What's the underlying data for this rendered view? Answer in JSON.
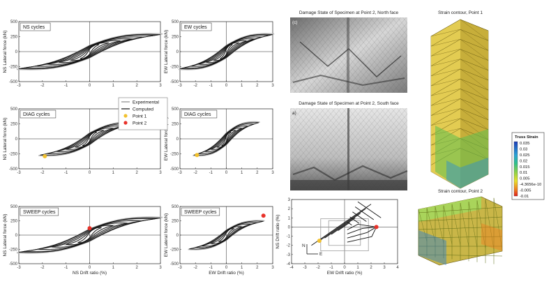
{
  "chart_data": [
    {
      "type": "line",
      "title": "NS cycles",
      "xlabel": "",
      "ylabel": "NS Lateral force (kN)",
      "xlim": [
        -3,
        3
      ],
      "ylim": [
        -500,
        500
      ],
      "xticks": [
        "-3",
        "-2",
        "-1",
        "0",
        "1",
        "2",
        "3"
      ],
      "yticks": [
        "500",
        "250",
        "0",
        "-250",
        "-500"
      ],
      "series": [],
      "amps": [
        0.4,
        0.8,
        1.3,
        1.8,
        2.3,
        2.8,
        3.0
      ],
      "fmax": 400
    },
    {
      "type": "line",
      "title": "EW cycles",
      "xlabel": "",
      "ylabel": "EW Lateral force (kN)",
      "xlim": [
        -3,
        3
      ],
      "ylim": [
        -500,
        500
      ],
      "xticks": [
        "-3",
        "-2",
        "-1",
        "0",
        "1",
        "2",
        "3"
      ],
      "yticks": [
        "500",
        "250",
        "0",
        "-250",
        "-500"
      ],
      "series": [],
      "amps": [
        0.4,
        0.8,
        1.3,
        1.8,
        2.3,
        2.8,
        3.0
      ],
      "fmax": 400
    },
    {
      "type": "line",
      "title": "DIAG cycles",
      "xlabel": "",
      "ylabel": "NS Lateral force (kN)",
      "xlim": [
        -3,
        3
      ],
      "ylim": [
        -500,
        500
      ],
      "xticks": [
        "-3",
        "-2",
        "-1",
        "0",
        "1",
        "2",
        "3"
      ],
      "yticks": [
        "500",
        "250",
        "0",
        "-250",
        "-500"
      ],
      "series": [],
      "amps": [
        0.3,
        0.6,
        1.0,
        1.4,
        1.8,
        2.1
      ],
      "fmax": 380,
      "points": [
        {
          "name": "Point 1",
          "x": -1.9,
          "y": -290,
          "color": "#f2c12e"
        }
      ]
    },
    {
      "type": "line",
      "title": "DIAG cycles",
      "xlabel": "",
      "ylabel": "EW Lateral force (kN)",
      "xlim": [
        -3,
        3
      ],
      "ylim": [
        -500,
        500
      ],
      "xticks": [
        "-3",
        "-2",
        "-1",
        "0",
        "1",
        "2",
        "3"
      ],
      "yticks": [
        "500",
        "250",
        "0",
        "-250",
        "-500"
      ],
      "series": [],
      "amps": [
        0.3,
        0.6,
        1.0,
        1.4,
        1.8,
        2.1
      ],
      "fmax": 380,
      "points": [
        {
          "name": "Point 1",
          "x": -1.9,
          "y": -270,
          "color": "#f2c12e"
        }
      ]
    },
    {
      "type": "line",
      "title": "SWEEP cycles",
      "xlabel": "NS Drift ratio (%)",
      "ylabel": "NS Lateral force (kN)",
      "xlim": [
        -3,
        3
      ],
      "ylim": [
        -500,
        500
      ],
      "xticks": [
        "-3",
        "-2",
        "-1",
        "0",
        "1",
        "2",
        "3"
      ],
      "yticks": [
        "500",
        "250",
        "0",
        "-250",
        "-500"
      ],
      "series": [],
      "amps": [
        0.5,
        1.0,
        1.6,
        2.2,
        2.8,
        3.0
      ],
      "fmax": 420,
      "points": [
        {
          "name": "Point 2",
          "x": 0.0,
          "y": 120,
          "color": "#e8322a"
        }
      ]
    },
    {
      "type": "line",
      "title": "SWEEP cycles",
      "xlabel": "EW Drift ratio (%)",
      "ylabel": "EW Lateral force (kN)",
      "xlim": [
        -3,
        3
      ],
      "ylim": [
        -500,
        500
      ],
      "xticks": [
        "-3",
        "-2",
        "-1",
        "0",
        "1",
        "2",
        "3"
      ],
      "yticks": [
        "500",
        "250",
        "0",
        "-250",
        "-500"
      ],
      "series": [],
      "amps": [
        0.5,
        1.0,
        1.6,
        2.0,
        2.4
      ],
      "fmax": 340,
      "points": [
        {
          "name": "Point 2",
          "x": 2.4,
          "y": 340,
          "color": "#e8322a"
        }
      ]
    },
    {
      "type": "line",
      "title": "",
      "xlabel": "EW Drift ratio (%)",
      "ylabel": "NS Drift ratio (%)",
      "xlim": [
        -4,
        4
      ],
      "ylim": [
        -4,
        3
      ],
      "xticks": [
        "-4",
        "-3",
        "-2",
        "-1",
        "0",
        "1",
        "2",
        "3",
        "4"
      ],
      "yticks": [
        "3",
        "2",
        "1",
        "0",
        "-1",
        "-2",
        "-3",
        "-4"
      ],
      "points": [
        {
          "name": "Point 1",
          "x": -1.9,
          "y": -1.5,
          "color": "#f2c12e"
        },
        {
          "name": "Point 2",
          "x": 2.4,
          "y": 0,
          "color": "#e8322a"
        }
      ],
      "compass": {
        "north": "N",
        "east": "E"
      }
    }
  ],
  "legend": {
    "items": [
      {
        "label": "Experimental",
        "color": "#b8b8b8"
      },
      {
        "label": "Computed",
        "color": "#111111"
      },
      {
        "label": "Point 1",
        "color": "#f2c12e"
      },
      {
        "label": "Point 2",
        "color": "#e8322a"
      }
    ]
  },
  "photos": [
    {
      "caption": "Damage State of Specimen at Point 2, North face",
      "tag": "(c)"
    },
    {
      "caption": "Damage State of Specimen at Point 2, South face",
      "tag": "a)"
    }
  ],
  "contours": [
    {
      "caption": "Strain contour, Point 1"
    },
    {
      "caption": "Strain contour, Point 2"
    }
  ],
  "colorbar": {
    "title": "Truss Strain",
    "labels": [
      "0.035",
      "0.03",
      "0.025",
      "0.02",
      "0.015",
      "0.01",
      "0.005",
      "-4.3656e-10",
      "-0.005",
      "-0.01"
    ]
  }
}
